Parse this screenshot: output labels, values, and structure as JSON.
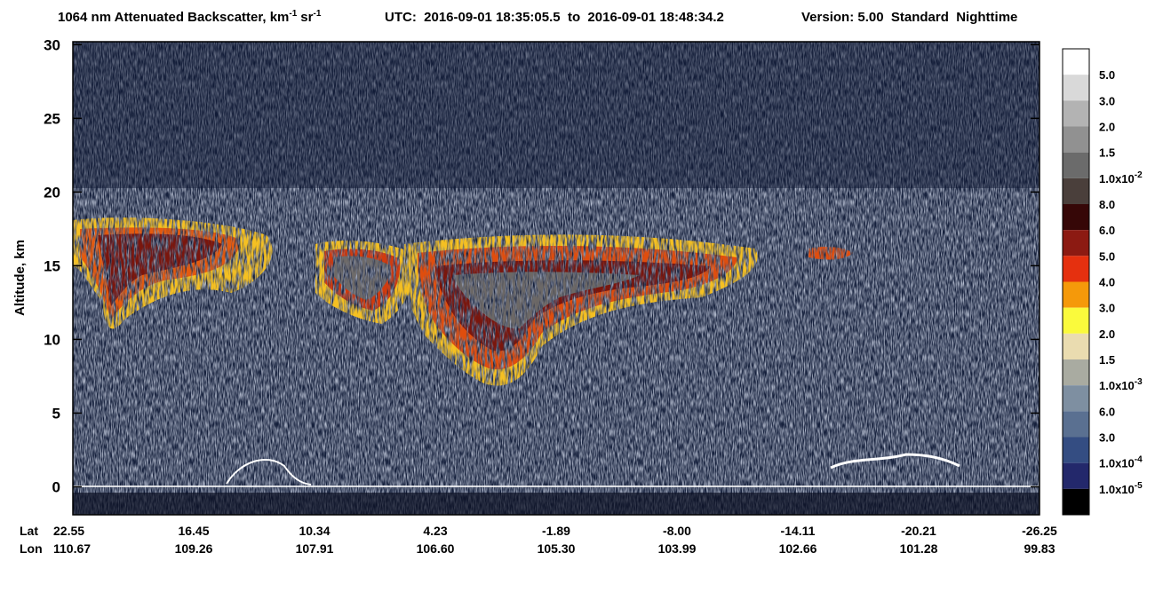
{
  "chart_data": {
    "type": "curtain",
    "title": "1064 nm Attenuated Backscatter, km",
    "title_exp1": "-1",
    "title_unit2": "sr",
    "title_exp2": "-1",
    "subtitle": "UTC:  2016-09-01 18:35:05.5  to  2016-09-01 18:48:34.2",
    "version": "Version: 5.00  Standard  Nighttime",
    "ylabel": "Altitude, km",
    "ylim": [
      -1.9,
      30.2
    ],
    "yticks": [
      0,
      5,
      10,
      15,
      20,
      25,
      30
    ],
    "xrows": [
      {
        "name": "Lat",
        "labels": [
          "22.55",
          "16.45",
          "10.34",
          "4.23",
          "-1.89",
          "-8.00",
          "-14.11",
          "-20.21",
          "-26.25"
        ]
      },
      {
        "name": "Lon",
        "labels": [
          "110.67",
          "109.26",
          "107.91",
          "106.60",
          "105.30",
          "103.99",
          "102.66",
          "101.28",
          "99.83"
        ]
      }
    ],
    "colorbar": {
      "colors": [
        "#ffffff",
        "#d9d9d9",
        "#b3b3b3",
        "#919191",
        "#6b6b6b",
        "#4a3f3b",
        "#360707",
        "#8c1a12",
        "#e5300f",
        "#f5990a",
        "#fafa3c",
        "#eadcb0",
        "#a9aba1",
        "#7e8fa1",
        "#5a7091",
        "#344d82",
        "#23286b",
        "#000000"
      ],
      "labels": [
        "5.0",
        "3.0",
        "2.0",
        "1.5",
        {
          "text": "1.0x10",
          "sup": "-2"
        },
        "8.0",
        "6.0",
        "5.0",
        "4.0",
        "3.0",
        "2.0",
        "1.5",
        {
          "text": "1.0x10",
          "sup": "-3"
        },
        "6.0",
        "3.0",
        {
          "text": "1.0x10",
          "sup": "-4"
        },
        {
          "text": "1.0x10",
          "sup": "-5"
        }
      ]
    }
  }
}
